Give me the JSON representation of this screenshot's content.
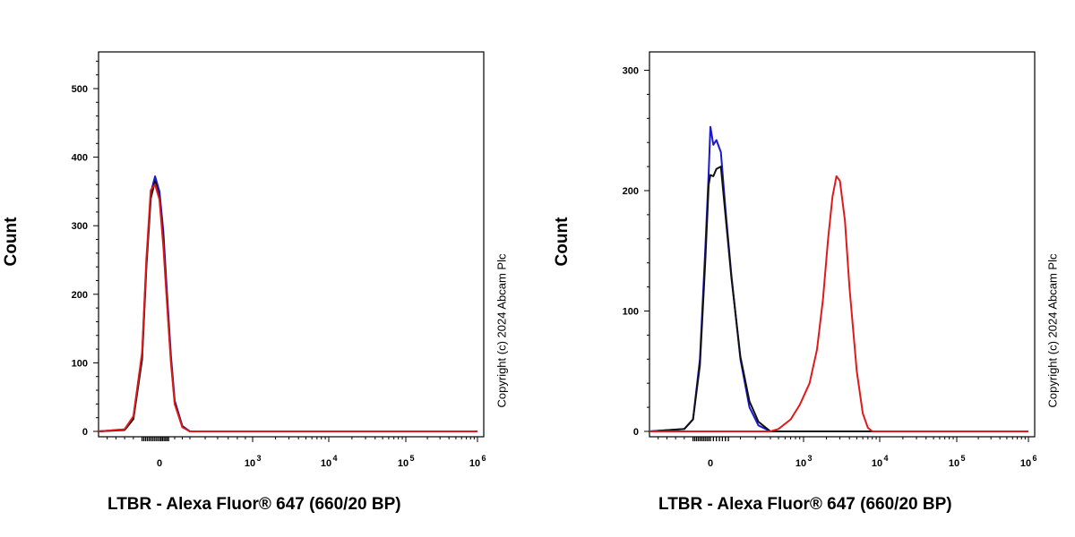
{
  "chart_data": [
    {
      "type": "line",
      "ylabel": "Count",
      "xlabel": "LTBR - Alexa Fluor® 647 (660/20 BP)",
      "copyright": "Copyright (c) 2024 Abcam Plc",
      "xscale": "biexponential",
      "xtick_labels": [
        {
          "value": 0,
          "label": "0",
          "exp": ""
        },
        {
          "value": 1000,
          "label": "10",
          "exp": "3"
        },
        {
          "value": 10000,
          "label": "10",
          "exp": "4"
        },
        {
          "value": 100000,
          "label": "10",
          "exp": "5"
        },
        {
          "value": 1000000,
          "label": "10",
          "exp": "6"
        }
      ],
      "yticks": [
        0,
        100,
        200,
        300,
        400,
        500
      ],
      "ylim": [
        0,
        560
      ],
      "series": [
        {
          "color": "#1a1acc",
          "x": [
            -700,
            -400,
            -300,
            -200,
            -150,
            -100,
            -50,
            0,
            50,
            100,
            150,
            200,
            300,
            400,
            1000000
          ],
          "y": [
            0,
            3,
            20,
            110,
            245,
            348,
            372,
            350,
            292,
            200,
            110,
            45,
            8,
            0,
            0
          ]
        },
        {
          "color": "#111111",
          "x": [
            -700,
            -400,
            -300,
            -200,
            -150,
            -100,
            -50,
            0,
            50,
            100,
            150,
            200,
            300,
            400,
            1000000
          ],
          "y": [
            0,
            2,
            18,
            105,
            240,
            340,
            365,
            340,
            280,
            190,
            105,
            42,
            7,
            0,
            0
          ]
        },
        {
          "color": "#e01a1a",
          "x": [
            -700,
            -400,
            -300,
            -200,
            -150,
            -100,
            -50,
            0,
            50,
            100,
            150,
            200,
            300,
            400,
            1000000
          ],
          "y": [
            0,
            3,
            22,
            115,
            252,
            352,
            360,
            338,
            270,
            185,
            100,
            40,
            6,
            0,
            0
          ]
        }
      ]
    },
    {
      "type": "line",
      "ylabel": "Count",
      "xlabel": "LTBR - Alexa Fluor® 647 (660/20 BP)",
      "copyright": "Copyright (c) 2024 Abcam Plc",
      "xscale": "biexponential",
      "xtick_labels": [
        {
          "value": 0,
          "label": "0",
          "exp": ""
        },
        {
          "value": 1000,
          "label": "10",
          "exp": "3"
        },
        {
          "value": 10000,
          "label": "10",
          "exp": "4"
        },
        {
          "value": 100000,
          "label": "10",
          "exp": "5"
        },
        {
          "value": 1000000,
          "label": "10",
          "exp": "6"
        }
      ],
      "yticks": [
        0,
        100,
        200,
        300
      ],
      "ylim": [
        0,
        315
      ],
      "series": [
        {
          "color": "#1a1acc",
          "x": [
            -700,
            -300,
            -200,
            -120,
            -60,
            -20,
            0,
            20,
            40,
            70,
            100,
            140,
            200,
            260,
            320,
            400,
            1000000
          ],
          "y": [
            0,
            2,
            10,
            60,
            150,
            215,
            253,
            238,
            242,
            232,
            185,
            130,
            60,
            20,
            5,
            0,
            0
          ]
        },
        {
          "color": "#111111",
          "x": [
            -700,
            -300,
            -200,
            -120,
            -60,
            -20,
            0,
            20,
            40,
            70,
            100,
            140,
            200,
            260,
            320,
            400,
            1000000
          ],
          "y": [
            0,
            2,
            10,
            55,
            140,
            205,
            213,
            212,
            218,
            220,
            180,
            128,
            62,
            25,
            8,
            0,
            0
          ]
        },
        {
          "color": "#e01a1a",
          "x": [
            -700,
            400,
            500,
            700,
            900,
            1200,
            1500,
            1800,
            2100,
            2400,
            2700,
            3000,
            3500,
            4000,
            5000,
            6000,
            7000,
            8000,
            1000000
          ],
          "y": [
            0,
            0,
            2,
            10,
            22,
            40,
            68,
            110,
            160,
            195,
            212,
            208,
            175,
            120,
            50,
            15,
            3,
            0,
            0
          ]
        }
      ]
    }
  ]
}
